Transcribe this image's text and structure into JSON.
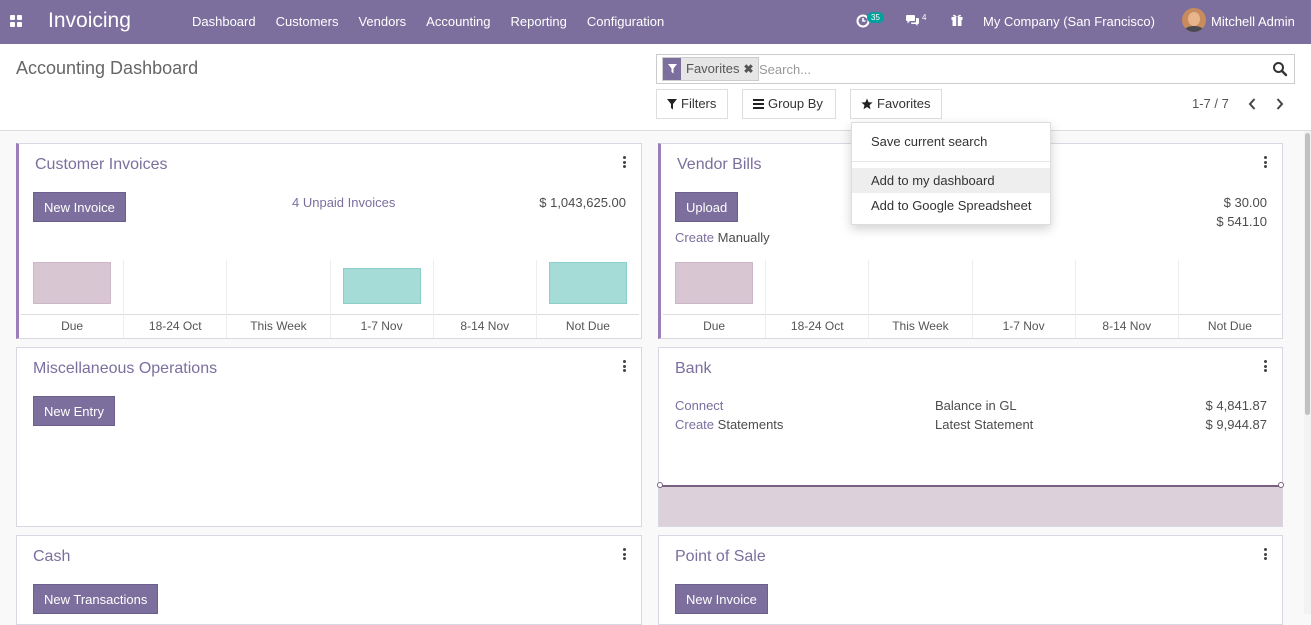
{
  "topbar": {
    "app_title": "Invoicing",
    "menu": [
      "Dashboard",
      "Customers",
      "Vendors",
      "Accounting",
      "Reporting",
      "Configuration"
    ],
    "activity_count": "35",
    "messages_count": "4",
    "company": "My Company (San Francisco)",
    "user": "Mitchell Admin"
  },
  "control_panel": {
    "title": "Accounting Dashboard",
    "facet_label": "Favorites",
    "search_placeholder": "Search...",
    "filters_label": "Filters",
    "groupby_label": "Group By",
    "favorites_label": "Favorites",
    "pager": "1-7 / 7"
  },
  "favorites_menu": {
    "save_current": "Save current search",
    "add_dashboard": "Add to my dashboard",
    "add_spreadsheet": "Add to Google Spreadsheet"
  },
  "cards": {
    "customer_invoices": {
      "title": "Customer Invoices",
      "button": "New Invoice",
      "unpaid_link": "4 Unpaid Invoices",
      "unpaid_amount": "$ 1,043,625.00",
      "chart_labels": [
        "Due",
        "18-24 Oct",
        "This Week",
        "1-7 Nov",
        "8-14 Nov",
        "Not Due"
      ]
    },
    "vendor_bills": {
      "title": "Vendor Bills",
      "button": "Upload",
      "create_link": "Create",
      "create_text": "Manually",
      "amount1": "$ 30.00",
      "amount2": "$ 541.10",
      "chart_labels": [
        "Due",
        "18-24 Oct",
        "This Week",
        "1-7 Nov",
        "8-14 Nov",
        "Not Due"
      ]
    },
    "misc": {
      "title": "Miscellaneous Operations",
      "button": "New Entry"
    },
    "bank": {
      "title": "Bank",
      "connect_link": "Connect",
      "create_link": "Create",
      "create_text": "Statements",
      "balance_label": "Balance in GL",
      "balance_value": "$ 4,841.87",
      "statement_label": "Latest Statement",
      "statement_value": "$ 9,944.87"
    },
    "cash": {
      "title": "Cash",
      "button": "New Transactions"
    },
    "pos": {
      "title": "Point of Sale",
      "button": "New Invoice"
    }
  },
  "colors": {
    "brand": "#7c6f9e",
    "bar_past": "#d8c6d3",
    "bar_future": "#a6dcd8"
  }
}
